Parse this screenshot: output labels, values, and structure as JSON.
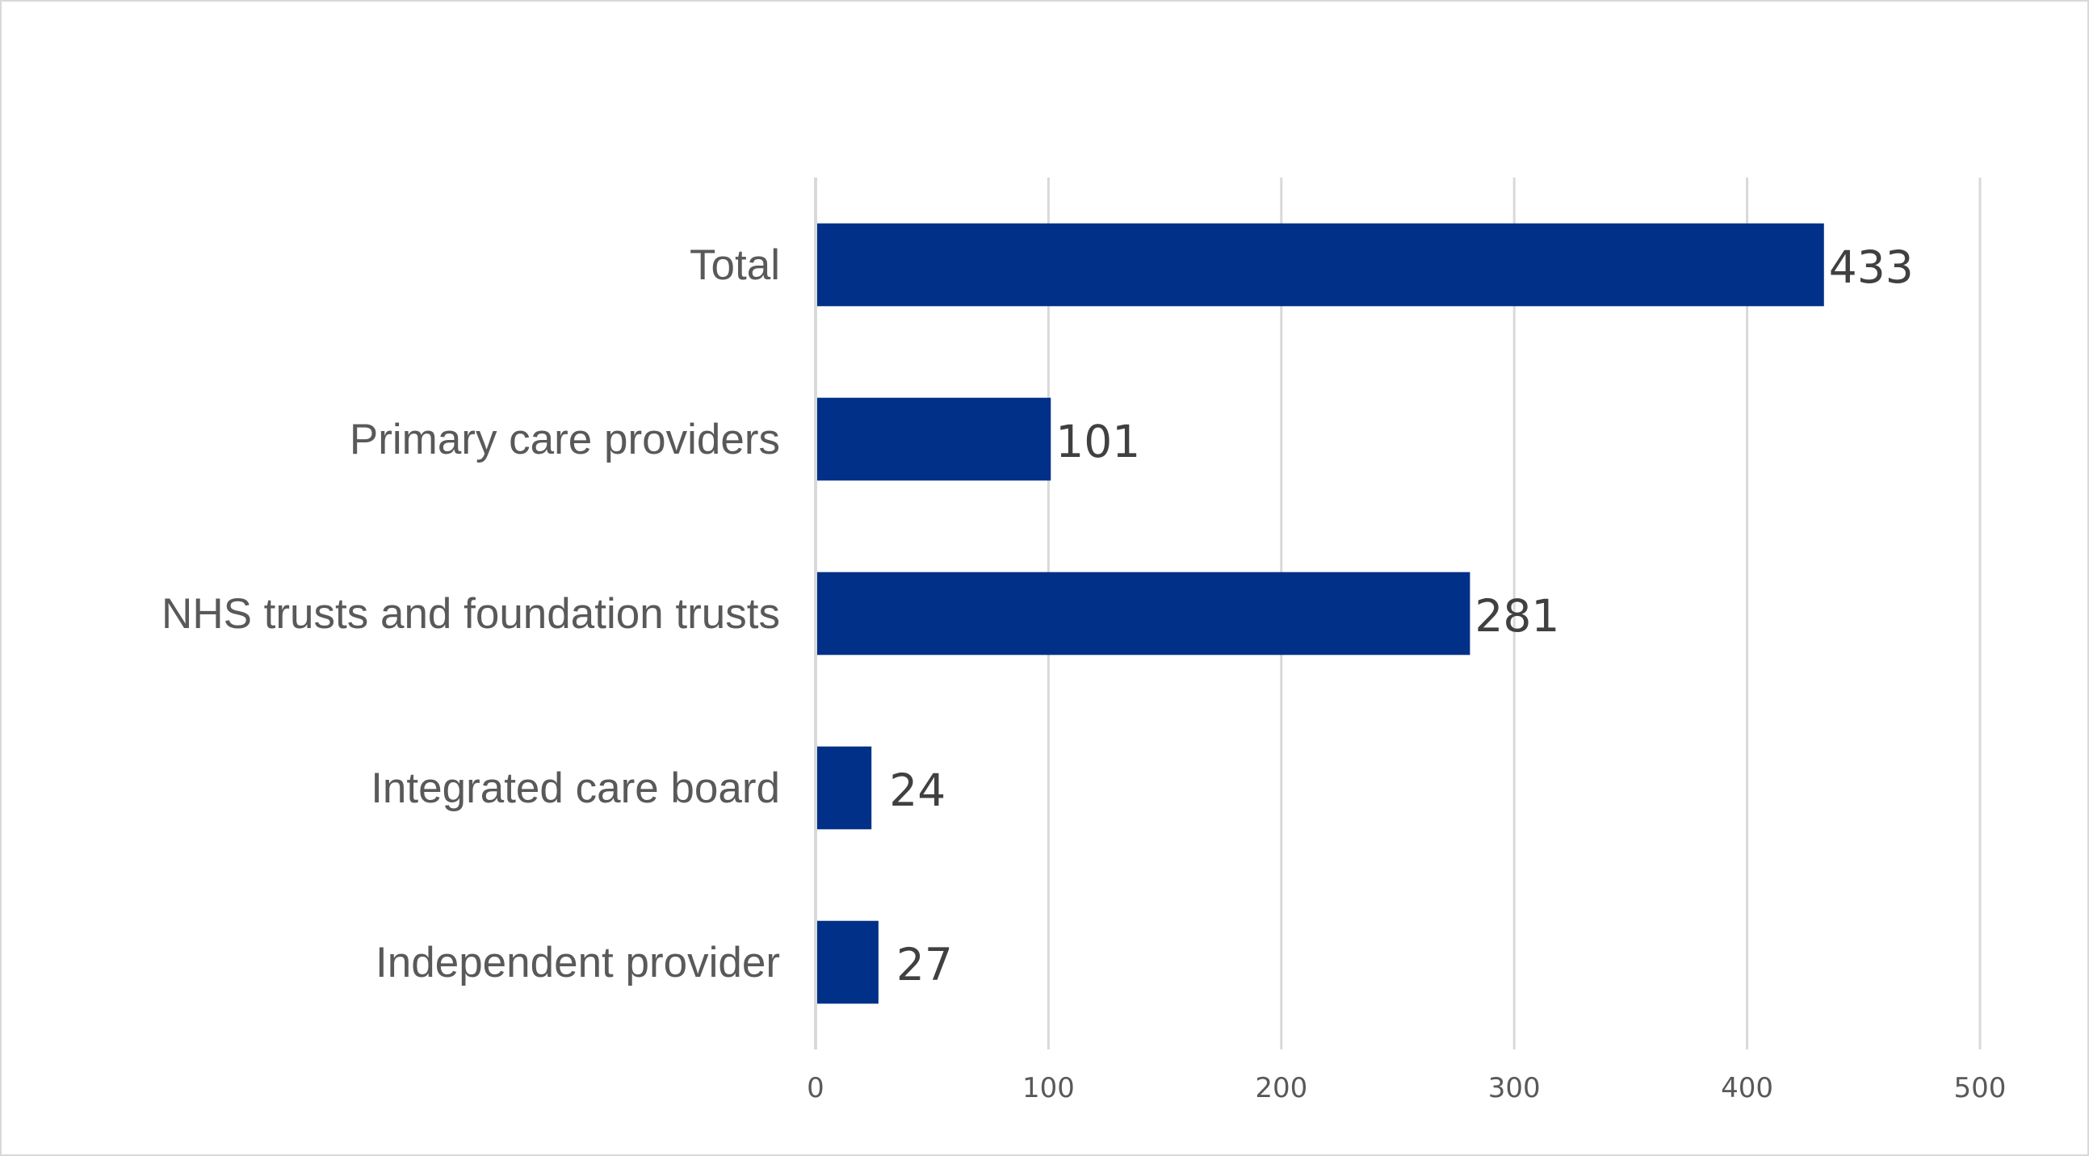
{
  "chart_data": {
    "type": "bar",
    "orientation": "horizontal",
    "categories": [
      "Total",
      "Primary care providers",
      "NHS trusts and foundation trusts",
      "Integrated care board",
      "Independent provider"
    ],
    "values": [
      433,
      101,
      281,
      24,
      27
    ],
    "data_labels": [
      "433",
      "101",
      "281",
      "24",
      "27"
    ],
    "xlim": [
      0,
      500
    ],
    "x_ticks": [
      0,
      100,
      200,
      300,
      400,
      500
    ],
    "x_tick_labels": [
      "0",
      "100",
      "200",
      "300",
      "400",
      "500"
    ],
    "title": "",
    "xlabel": "",
    "ylabel": "",
    "grid": "vertical",
    "legend": "none",
    "bar_color": "#003087"
  }
}
